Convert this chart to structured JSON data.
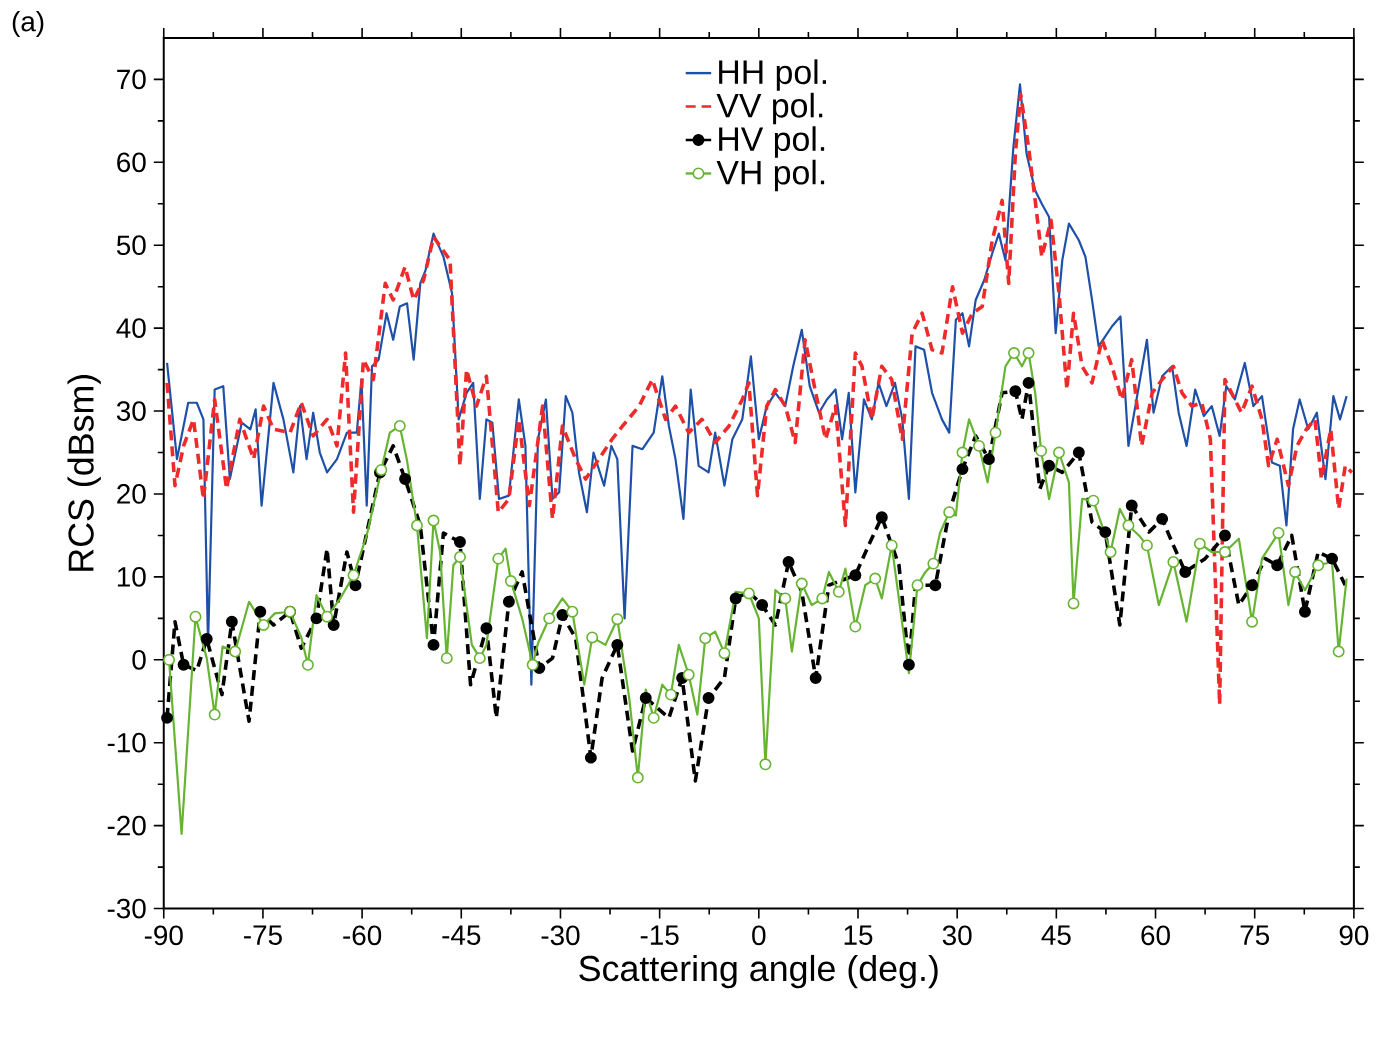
{
  "chart_data": {
    "type": "line",
    "xlabel": "Scattering angle (deg.)",
    "ylabel": "RCS (dBsm)",
    "annotations": [
      "(a)"
    ],
    "xlim": [
      -90,
      90
    ],
    "ylim": [
      -30,
      75
    ],
    "xticks": [
      -90,
      -75,
      -60,
      -45,
      -30,
      -15,
      0,
      15,
      30,
      45,
      60,
      75,
      90
    ],
    "yticks": [
      -30,
      -20,
      -10,
      0,
      10,
      20,
      30,
      40,
      50,
      60,
      70
    ],
    "legend": "top",
    "grid": false,
    "series": [
      {
        "name": "HH pol.",
        "color": "#1f50a8",
        "line_style": "solid",
        "marker": "none",
        "x": [
          -89.5,
          -88,
          -86.3,
          -85,
          -84,
          -83.3,
          -82.3,
          -81,
          -80,
          -78.2,
          -76.9,
          -76.1,
          -75.2,
          -73.4,
          -71.9,
          -70.4,
          -69.4,
          -68.4,
          -67.4,
          -66.4,
          -65.3,
          -63.8,
          -62.3,
          -60.8,
          -60.1,
          -59.3,
          -58.5,
          -57.5,
          -56.3,
          -55.3,
          -54.3,
          -53.2,
          -52.2,
          -51.2,
          -50.4,
          -49.2,
          -47.7,
          -46.4,
          -45.4,
          -44.2,
          -43.2,
          -42.2,
          -41.2,
          -40.3,
          -39.3,
          -37.8,
          -36.3,
          -35.3,
          -34.4,
          -33.4,
          -32.2,
          -31.2,
          -30.2,
          -29.2,
          -28.2,
          -27.2,
          -26,
          -25,
          -23.4,
          -22.3,
          -21.4,
          -20.3,
          -19.1,
          -17.6,
          -15.9,
          -14.6,
          -13.6,
          -12.6,
          -11.4,
          -10.3,
          -9.1,
          -7.6,
          -6.6,
          -5.2,
          -4,
          -2.5,
          -1.2,
          0,
          1.2,
          2.5,
          4,
          5.2,
          6.5,
          7.7,
          9.1,
          10.3,
          11.6,
          12.6,
          13.6,
          14.6,
          15.9,
          17.1,
          18.1,
          19.3,
          20.6,
          21.7,
          22.7,
          23.7,
          25,
          26.2,
          27.7,
          28.8,
          29.8,
          30.8,
          31.8,
          32.8,
          34.1,
          35.3,
          36.3,
          37.3,
          38.5,
          39.5,
          40.5,
          41.8,
          42.8,
          43.9,
          44.9,
          45.9,
          46.9,
          48.4,
          49.4,
          50.4,
          51.4,
          52.4,
          53.4,
          54.7,
          55.9,
          57.3,
          58.7,
          59.7,
          61,
          62.5,
          63.5,
          64.7,
          66,
          67.3,
          68.5,
          69.7,
          70.7,
          72,
          73.5,
          74.8,
          76.1,
          77.6,
          78.8,
          79.8,
          80.8,
          81.8,
          83.1,
          84.4,
          85.7,
          86.9,
          87.9,
          88.9
        ],
        "values": [
          35.8,
          24.2,
          31,
          31,
          29,
          1.8,
          32.6,
          33,
          21.8,
          28.6,
          27.8,
          30.2,
          18.6,
          33.4,
          29,
          22.6,
          30.6,
          24.2,
          29.8,
          25,
          22.6,
          24.2,
          27.4,
          27.4,
          33.8,
          18.6,
          35.4,
          36.2,
          41.8,
          38.6,
          42.6,
          43,
          36.2,
          45.4,
          47,
          51.4,
          48.6,
          44.2,
          29,
          32.2,
          33.4,
          19.4,
          29,
          28.6,
          19.4,
          19.8,
          31.4,
          25.8,
          -3,
          26.6,
          31.4,
          19.4,
          20.2,
          31.8,
          29.8,
          22.6,
          17.8,
          25,
          21,
          25.8,
          24.2,
          5,
          25.8,
          25.4,
          27.4,
          34.2,
          28.2,
          24.2,
          17,
          32.6,
          23.4,
          22.6,
          27.4,
          21,
          26.6,
          29,
          36.6,
          26.6,
          30.6,
          32.2,
          30.6,
          35.4,
          39.8,
          33,
          29.8,
          31.4,
          32.6,
          26.6,
          32.2,
          20.2,
          31.4,
          29,
          33.4,
          30.6,
          33.4,
          29,
          19.4,
          37.8,
          37.4,
          32.2,
          29,
          27.4,
          41,
          41.8,
          37.8,
          43.4,
          45.8,
          49,
          51.4,
          48.2,
          61.8,
          69.4,
          61,
          56.6,
          55,
          53.4,
          39.4,
          48.2,
          52.6,
          50.6,
          48.6,
          43.4,
          37.8,
          39,
          40.2,
          41.4,
          25.8,
          32.2,
          38.6,
          29.8,
          34.2,
          35.4,
          29.8,
          25.8,
          32.6,
          29.4,
          30.6,
          27,
          33,
          31.4,
          35.8,
          30.6,
          31.8,
          23.8,
          23.4,
          16.2,
          27.8,
          31.4,
          27.8,
          29.8,
          21.8,
          31.8,
          29,
          31.8
        ]
      },
      {
        "name": "VV pol.",
        "color": "#ee2a2a",
        "line_style": "dashed",
        "marker": "none",
        "x": [
          -89.5,
          -88.3,
          -87,
          -85.5,
          -84,
          -82.3,
          -80.5,
          -78.5,
          -76.4,
          -74.9,
          -73.4,
          -70.9,
          -69.2,
          -67.4,
          -65.3,
          -63.8,
          -62.5,
          -61.3,
          -59.8,
          -58.3,
          -56.5,
          -55.3,
          -53.5,
          -52.2,
          -50.7,
          -49.2,
          -46.7,
          -45.2,
          -44.2,
          -42.7,
          -41.2,
          -39.4,
          -37.8,
          -36.3,
          -34.7,
          -32.7,
          -31.2,
          -29.7,
          -27.7,
          -26.2,
          -24.2,
          -22.2,
          -20.6,
          -18.1,
          -16.1,
          -14.1,
          -12.6,
          -10.6,
          -8.6,
          -6.6,
          -4.5,
          -2.5,
          -1.5,
          -0.2,
          1.2,
          2.5,
          4,
          5.5,
          7,
          8.6,
          10.1,
          11.6,
          13.1,
          14.6,
          15.6,
          17.1,
          18.6,
          20.1,
          21.7,
          23.2,
          24.7,
          26.2,
          27.7,
          29.3,
          30.8,
          32.3,
          33.8,
          35.3,
          36.8,
          37.8,
          38.8,
          39.6,
          40.8,
          41.8,
          42.8,
          44.2,
          45.4,
          46.6,
          47.6,
          48.9,
          50.4,
          51.9,
          53.4,
          54.9,
          56.4,
          57.9,
          59.5,
          61,
          62.7,
          64,
          65.5,
          67,
          68.3,
          69.7,
          70.5,
          71.5,
          73,
          74.6,
          76.1,
          77.1,
          78.4,
          80.1,
          81.4,
          82.8,
          84.1,
          85.1,
          86.5,
          87.7,
          88.7,
          89.7
        ],
        "values": [
          33.4,
          21,
          25.8,
          29,
          19.4,
          31.4,
          20.6,
          29,
          24.2,
          30.6,
          27.8,
          27.4,
          31,
          27,
          29,
          25.8,
          37,
          17.8,
          36.2,
          33.8,
          45.4,
          43.4,
          47.4,
          43.4,
          45.8,
          51,
          48.2,
          23.4,
          35,
          30.6,
          34.2,
          17.8,
          19.4,
          29,
          18.6,
          30.6,
          17,
          28.2,
          24.2,
          21.8,
          24.2,
          26.6,
          28.2,
          30.6,
          33.8,
          29,
          30.6,
          27.4,
          29,
          26.2,
          28.2,
          31.4,
          33.4,
          19.8,
          30.6,
          32.6,
          30.6,
          26.2,
          38.6,
          32.2,
          26.6,
          30.6,
          16.2,
          37,
          35.4,
          29,
          35.4,
          33.8,
          26.6,
          39.4,
          41.8,
          37.4,
          37,
          45,
          39.4,
          41.8,
          42.6,
          50.6,
          55.4,
          45.4,
          61,
          68.2,
          61.8,
          55.4,
          48.6,
          53,
          44.2,
          32.6,
          41.8,
          35.4,
          33.4,
          38.6,
          35.4,
          31.4,
          36.2,
          25.8,
          32.2,
          33.8,
          35.4,
          32.2,
          30.6,
          31,
          26.6,
          -5.4,
          33.8,
          32.2,
          29.8,
          33,
          29,
          23.4,
          26.6,
          21,
          25.8,
          27.8,
          29,
          21.8,
          27.8,
          18.2,
          23.4,
          22.6
        ]
      },
      {
        "name": "HV pol.",
        "color": "#000000",
        "line_style": "dashed",
        "marker": "circle",
        "x": [
          -89.5,
          -88.3,
          -87,
          -85,
          -83.5,
          -81.2,
          -79.7,
          -77.1,
          -75.4,
          -73.4,
          -70.9,
          -69.2,
          -66.9,
          -65.3,
          -64.3,
          -62.3,
          -61,
          -59.3,
          -57.3,
          -55.3,
          -53.5,
          -51.2,
          -49.2,
          -47.7,
          -45.2,
          -43.6,
          -41.2,
          -39.7,
          -37.8,
          -35.8,
          -33.2,
          -31.2,
          -29.7,
          -27.7,
          -25.4,
          -23.7,
          -21.4,
          -19.1,
          -17.1,
          -13.6,
          -11.6,
          -9.6,
          -7.6,
          -5.2,
          -3.5,
          -1.5,
          0.5,
          2.5,
          4.5,
          6.5,
          8.6,
          10.6,
          14.6,
          16.6,
          18.6,
          21.2,
          22.7,
          23.7,
          26.7,
          28.8,
          30.8,
          32.8,
          34.8,
          36.8,
          38.8,
          39.8,
          40.8,
          42.5,
          43.9,
          45.9,
          48.4,
          50.4,
          52.4,
          54.6,
          56.4,
          59,
          61,
          62.7,
          64.5,
          67.5,
          70.5,
          72.6,
          74.6,
          76.6,
          78.4,
          80.6,
          82.6,
          84.6,
          86.7,
          88.7
        ],
        "values": [
          -7,
          4.6,
          -0.6,
          -1.3,
          2.5,
          -4.2,
          4.6,
          -7.4,
          5.8,
          4.2,
          5.8,
          1.4,
          5,
          13.4,
          4.2,
          13,
          9,
          15.3,
          22.6,
          25.8,
          21.8,
          16.2,
          1.8,
          15.3,
          14.2,
          -3,
          3.8,
          -7,
          7,
          10.6,
          -1,
          0.2,
          5.4,
          2.6,
          -11.8,
          -2.2,
          1.8,
          -11,
          -4.6,
          -7,
          -2.2,
          -14.6,
          -4.6,
          -2.2,
          7.4,
          8.2,
          6.6,
          4.2,
          11.8,
          8.2,
          -2.2,
          9,
          10.2,
          13.8,
          17.2,
          11.4,
          -0.6,
          9,
          9,
          17.8,
          23,
          27,
          24.2,
          32.2,
          32.4,
          29,
          33.4,
          20.6,
          23.4,
          22.6,
          25,
          16.6,
          15.4,
          4.2,
          18.6,
          15.4,
          17,
          13.8,
          10.6,
          12.2,
          15,
          6.6,
          9,
          12.2,
          11.4,
          15,
          5.8,
          13,
          12.2,
          9
        ]
      },
      {
        "name": "VH pol.",
        "color": "#66b432",
        "line_style": "solid",
        "marker": "circle",
        "x": [
          -89.2,
          -87.3,
          -85.2,
          -83.5,
          -82.3,
          -81.1,
          -79.2,
          -77.1,
          -74.9,
          -73.2,
          -70.9,
          -69.2,
          -68.2,
          -66.9,
          -65.3,
          -63.3,
          -61.3,
          -59.3,
          -57.1,
          -55.8,
          -54.3,
          -53.2,
          -51.7,
          -50.2,
          -49.2,
          -48.2,
          -47.2,
          -46.2,
          -45.2,
          -43.4,
          -42.2,
          -41.2,
          -39.4,
          -38.3,
          -37.5,
          -35.8,
          -34.2,
          -33.4,
          -31.7,
          -29.7,
          -28.2,
          -26.4,
          -25.2,
          -23.2,
          -21.4,
          -19.6,
          -18.3,
          -17.1,
          -15.9,
          -14.6,
          -13.3,
          -12.1,
          -10.6,
          -9.3,
          -8.1,
          -6.6,
          -5.2,
          -3.5,
          -1.5,
          0,
          1,
          2.5,
          4,
          5,
          6.5,
          8,
          9.6,
          10.6,
          12.1,
          13.1,
          14.6,
          16.1,
          17.6,
          18.6,
          20.1,
          22.7,
          24,
          25.2,
          26.4,
          27.4,
          28.8,
          29.8,
          30.8,
          31.8,
          33.3,
          34.6,
          35.8,
          37.3,
          38.6,
          39.8,
          40.8,
          41.8,
          42.7,
          43.9,
          45.4,
          46.9,
          47.6,
          48.9,
          50.6,
          51.9,
          53.2,
          54.6,
          55.9,
          57.5,
          58.7,
          60.5,
          62.7,
          64.7,
          66.7,
          68.5,
          70.5,
          72.6,
          74.6,
          76.1,
          78.6,
          80.1,
          81.1,
          82.6,
          84.6,
          86.7,
          87.7,
          88.9
        ],
        "values": [
          0,
          -21,
          5.2,
          0.2,
          -6.6,
          1.6,
          1,
          7,
          4.2,
          5.6,
          5.8,
          2.7,
          -0.6,
          7.8,
          5.2,
          7.4,
          10.2,
          15,
          22.9,
          27.4,
          28.2,
          24,
          16.2,
          2.6,
          16.8,
          13,
          0.2,
          11.4,
          12.4,
          1.8,
          0.2,
          1.8,
          12.2,
          13.4,
          9.5,
          5,
          -0.6,
          2,
          5,
          7.4,
          5.8,
          -3,
          2.7,
          1.8,
          4.9,
          -4.6,
          -14.2,
          -3.6,
          -7,
          -3,
          -4.2,
          1.8,
          -1.8,
          -6.6,
          2.6,
          3.4,
          0.8,
          8.2,
          8,
          5,
          -12.6,
          8.4,
          7.4,
          1,
          9.2,
          6.6,
          7.4,
          10.6,
          8.2,
          11,
          4,
          9,
          9.8,
          7.4,
          13.8,
          -1.6,
          9,
          10.6,
          11.6,
          15.3,
          17.8,
          17.4,
          25,
          29,
          25.8,
          21.4,
          27.4,
          35.4,
          37,
          35.4,
          37,
          32.2,
          25.2,
          19.4,
          25,
          21.4,
          6.8,
          19.4,
          19.2,
          16.2,
          13,
          18.2,
          16.2,
          15,
          13.8,
          6.6,
          11.8,
          4.6,
          14,
          13,
          13,
          14.6,
          4.6,
          12.2,
          15.3,
          6.6,
          10.6,
          8.4,
          11.4,
          11.8,
          1,
          9.8
        ]
      }
    ]
  }
}
